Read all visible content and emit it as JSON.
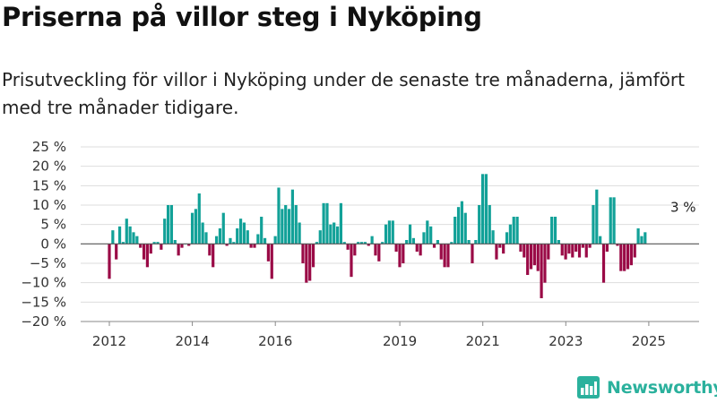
{
  "title": "Priserna på villor steg i Nyköping",
  "subtitle": "Prisutveckling för villor i Nyköping under de senaste tre månaderna, jämfört med tre månader tidigare.",
  "brand": {
    "name": "Newsworthy",
    "icon": "newsworthy-logo-icon",
    "color": "#2bb19d"
  },
  "colors": {
    "positive": "#12a198",
    "negative": "#9a0a46",
    "grid": "#dddddd",
    "zero": "#555555"
  },
  "chart_data": {
    "type": "bar",
    "ylim": [
      -20,
      25
    ],
    "yticks": [
      -20,
      -15,
      -10,
      -5,
      0,
      5,
      10,
      15,
      20,
      25
    ],
    "ytick_labels": [
      "−20 %",
      "−15 %",
      "−10 %",
      "−5 %",
      "0 %",
      "5 %",
      "10 %",
      "15 %",
      "20 %",
      "25 %"
    ],
    "xticks": [
      "2012",
      "2014",
      "2016",
      "2019",
      "2021",
      "2023",
      "2025"
    ],
    "xtick_positions": [
      2012.0,
      2014.0,
      2016.0,
      2019.0,
      2021.0,
      2023.0,
      2025.0
    ],
    "x_start": 2012.0,
    "x_step": 0.0833,
    "grid": "horizontal",
    "annotation": {
      "text": "3 %",
      "target_index": 166
    },
    "values": [
      -9,
      3.5,
      -4,
      4.5,
      0.5,
      6.5,
      4.5,
      3,
      2,
      -1,
      -4,
      -6,
      -2.5,
      0.5,
      0.5,
      -1.5,
      6.5,
      10,
      10,
      1,
      -3,
      -1,
      0,
      -0.5,
      8,
      9,
      13,
      5.5,
      3,
      -3,
      -6,
      2,
      4,
      8,
      -0.5,
      1.5,
      0.5,
      4,
      6.5,
      5.5,
      3.5,
      -1,
      -1,
      2.5,
      7,
      1.5,
      -4.5,
      -9,
      2,
      14.5,
      9,
      10,
      9,
      14,
      10,
      5.5,
      -5,
      -10,
      -9.5,
      -6,
      0.5,
      3.5,
      10.5,
      10.5,
      5,
      5.5,
      4.5,
      10.5,
      0.5,
      -1.5,
      -8.5,
      -3,
      0.5,
      0.5,
      0.5,
      -0.5,
      2,
      -3,
      -4.5,
      0.5,
      5,
      6,
      6,
      -2,
      -6,
      -5,
      1,
      5,
      1.5,
      -2,
      -3,
      3,
      6,
      4.5,
      -1,
      1,
      -4,
      -6,
      -6,
      0.5,
      7,
      9.5,
      11,
      8,
      1,
      -5,
      1,
      10,
      18,
      18,
      10,
      3.5,
      -4,
      -1,
      -2.5,
      3,
      5,
      7,
      7,
      -2,
      -3.5,
      -8,
      -6.5,
      -5.5,
      -7,
      -14,
      -10,
      -4,
      7,
      7,
      1,
      -3,
      -4,
      -2.5,
      -3.5,
      -2,
      -3.5,
      -1,
      -3.5,
      -1,
      10,
      14,
      2,
      -10,
      -2,
      12,
      12,
      -0.5,
      -7,
      -7,
      -6.5,
      -5.5,
      -3.5,
      4,
      2,
      3
    ]
  }
}
